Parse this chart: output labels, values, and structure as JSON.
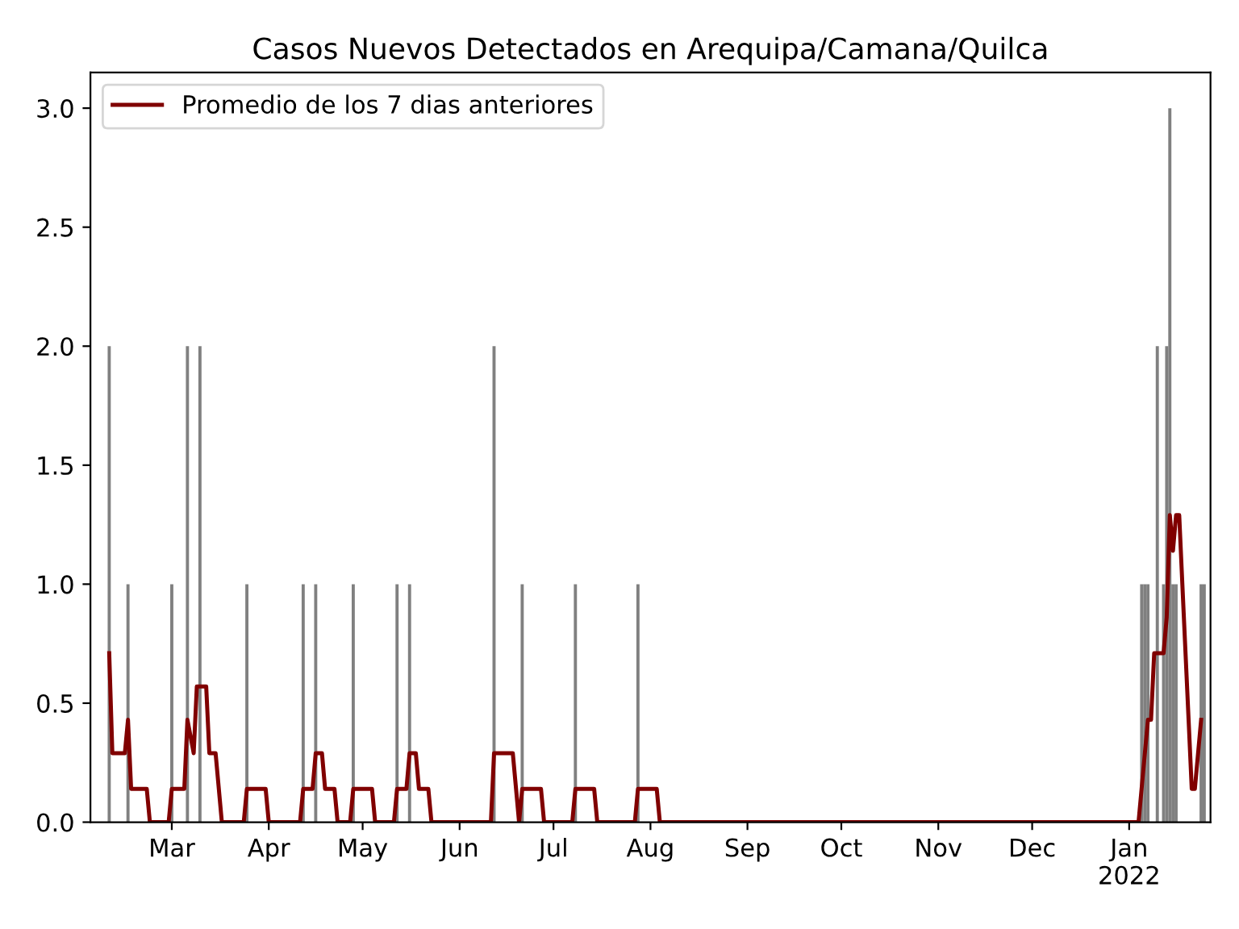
{
  "chart_data": {
    "type": "bar",
    "title": "Casos Nuevos Detectados en Arequipa/Camana/Quilca",
    "x": [
      "2021-02-09",
      "2021-02-15",
      "2021-03-01",
      "2021-03-06",
      "2021-03-10",
      "2021-03-25",
      "2021-04-12",
      "2021-04-16",
      "2021-04-28",
      "2021-05-12",
      "2021-05-16",
      "2021-06-12",
      "2021-06-21",
      "2021-07-08",
      "2021-07-28",
      "2022-01-05",
      "2022-01-06",
      "2022-01-07",
      "2022-01-10",
      "2022-01-12",
      "2022-01-13",
      "2022-01-14",
      "2022-01-15",
      "2022-01-16",
      "2022-01-24",
      "2022-01-25"
    ],
    "values": [
      2,
      1,
      1,
      2,
      2,
      1,
      1,
      1,
      1,
      1,
      1,
      2,
      1,
      1,
      1,
      1,
      1,
      1,
      2,
      1,
      2,
      3,
      1,
      1,
      1,
      1
    ],
    "color": "#808080",
    "series": [
      {
        "name": "Promedio de los 7 dias anteriores",
        "type": "line",
        "color": "#800000",
        "x": [
          "2021-02-09",
          "2021-02-10",
          "2021-02-14",
          "2021-02-15",
          "2021-02-16",
          "2021-02-21",
          "2021-02-22",
          "2021-02-28",
          "2021-03-01",
          "2021-03-05",
          "2021-03-06",
          "2021-03-08",
          "2021-03-09",
          "2021-03-12",
          "2021-03-13",
          "2021-03-15",
          "2021-03-17",
          "2021-03-24",
          "2021-03-25",
          "2021-03-31",
          "2021-04-01",
          "2021-04-11",
          "2021-04-12",
          "2021-04-15",
          "2021-04-16",
          "2021-04-18",
          "2021-04-19",
          "2021-04-22",
          "2021-04-23",
          "2021-04-27",
          "2021-04-28",
          "2021-05-04",
          "2021-05-05",
          "2021-05-11",
          "2021-05-12",
          "2021-05-15",
          "2021-05-16",
          "2021-05-18",
          "2021-05-19",
          "2021-05-22",
          "2021-05-23",
          "2021-06-11",
          "2021-06-12",
          "2021-06-18",
          "2021-06-20",
          "2021-06-21",
          "2021-06-27",
          "2021-06-28",
          "2021-07-07",
          "2021-07-08",
          "2021-07-14",
          "2021-07-15",
          "2021-07-27",
          "2021-07-28",
          "2021-08-03",
          "2021-08-04",
          "2022-01-04",
          "2022-01-07",
          "2022-01-08",
          "2022-01-09",
          "2022-01-12",
          "2022-01-13",
          "2022-01-14",
          "2022-01-15",
          "2022-01-16",
          "2022-01-17",
          "2022-01-18",
          "2022-01-20",
          "2022-01-21",
          "2022-01-22",
          "2022-01-24"
        ],
        "values": [
          0.71,
          0.29,
          0.29,
          0.43,
          0.14,
          0.14,
          0,
          0,
          0.14,
          0.14,
          0.43,
          0.29,
          0.57,
          0.57,
          0.29,
          0.29,
          0,
          0,
          0.14,
          0.14,
          0,
          0,
          0.14,
          0.14,
          0.29,
          0.29,
          0.14,
          0.14,
          0,
          0,
          0.14,
          0.14,
          0,
          0,
          0.14,
          0.14,
          0.29,
          0.29,
          0.14,
          0.14,
          0,
          0,
          0.29,
          0.29,
          0,
          0.14,
          0.14,
          0,
          0,
          0.14,
          0.14,
          0,
          0,
          0.14,
          0.14,
          0,
          0,
          0.43,
          0.43,
          0.71,
          0.71,
          0.86,
          1.29,
          1.14,
          1.29,
          1.29,
          1.0,
          0.43,
          0.14,
          0.14,
          0.43
        ]
      }
    ],
    "xlim": [
      "2021-02-03",
      "2022-01-27"
    ],
    "xticks": [
      {
        "value": "2021-03-01",
        "label": "Mar"
      },
      {
        "value": "2021-04-01",
        "label": "Apr"
      },
      {
        "value": "2021-05-01",
        "label": "May"
      },
      {
        "value": "2021-06-01",
        "label": "Jun"
      },
      {
        "value": "2021-07-01",
        "label": "Jul"
      },
      {
        "value": "2021-08-01",
        "label": "Aug"
      },
      {
        "value": "2021-09-01",
        "label": "Sep"
      },
      {
        "value": "2021-10-01",
        "label": "Oct"
      },
      {
        "value": "2021-11-01",
        "label": "Nov"
      },
      {
        "value": "2021-12-01",
        "label": "Dec"
      },
      {
        "value": "2022-01-01",
        "label": "Jan\n2022"
      }
    ],
    "ylim": [
      0,
      3.15
    ],
    "yticks": [
      {
        "value": 0,
        "label": "0.0"
      },
      0.5,
      {
        "value": 1,
        "label": "1.0"
      },
      1.5,
      {
        "value": 2,
        "label": "2.0"
      },
      2.5,
      {
        "value": 3,
        "label": "3.0"
      }
    ],
    "legend": "top left",
    "grid": false
  }
}
